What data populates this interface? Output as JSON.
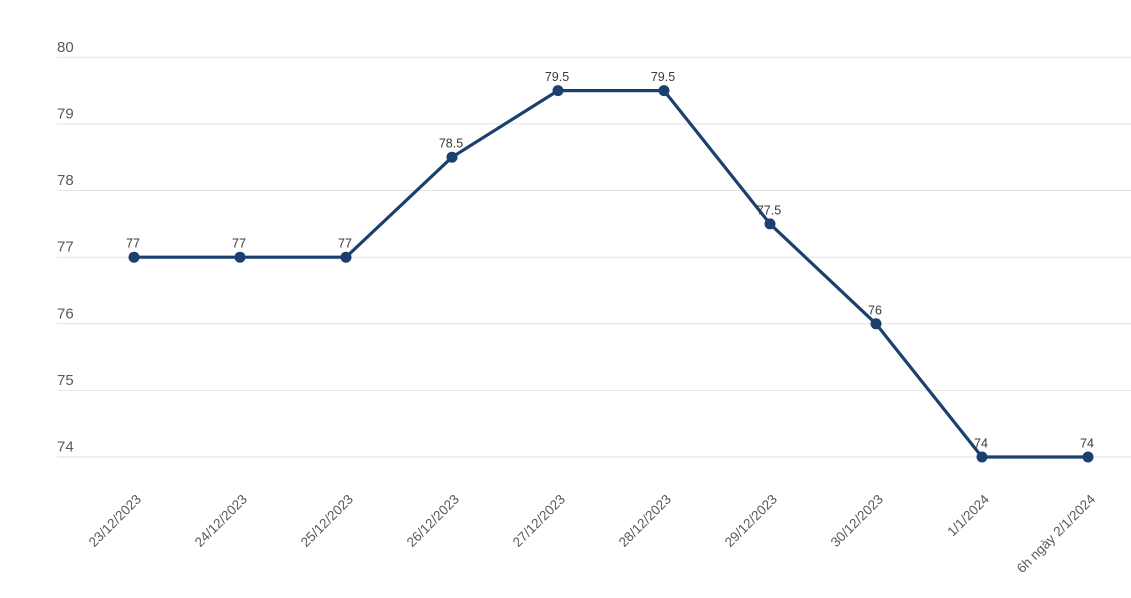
{
  "chart_data": {
    "type": "line",
    "x": [
      "23/12/2023",
      "24/12/2023",
      "25/12/2023",
      "26/12/2023",
      "27/12/2023",
      "28/12/2023",
      "29/12/2023",
      "30/12/2023",
      "1/1/2024",
      "6h ngày 2/1/2024"
    ],
    "values": [
      77,
      77,
      77,
      78.5,
      79.5,
      79.5,
      77.5,
      76,
      74,
      74
    ],
    "data_labels": [
      "77",
      "77",
      "77",
      "78.5",
      "79.5",
      "79.5",
      "77.5",
      "76",
      "74",
      "74"
    ],
    "y_ticks": [
      "80",
      "79",
      "78",
      "77",
      "76",
      "75",
      "74"
    ],
    "ylim": [
      74,
      80
    ],
    "title": "",
    "xlabel": "",
    "ylabel": "",
    "grid": "horizontal",
    "legend": "none",
    "colors": {
      "line": "#1b4070",
      "marker": "#1b4070",
      "gridline": "#e2e2e2",
      "axis_text": "#595959",
      "data_label_text": "#3a3a3a",
      "background": "#ffffff"
    }
  }
}
